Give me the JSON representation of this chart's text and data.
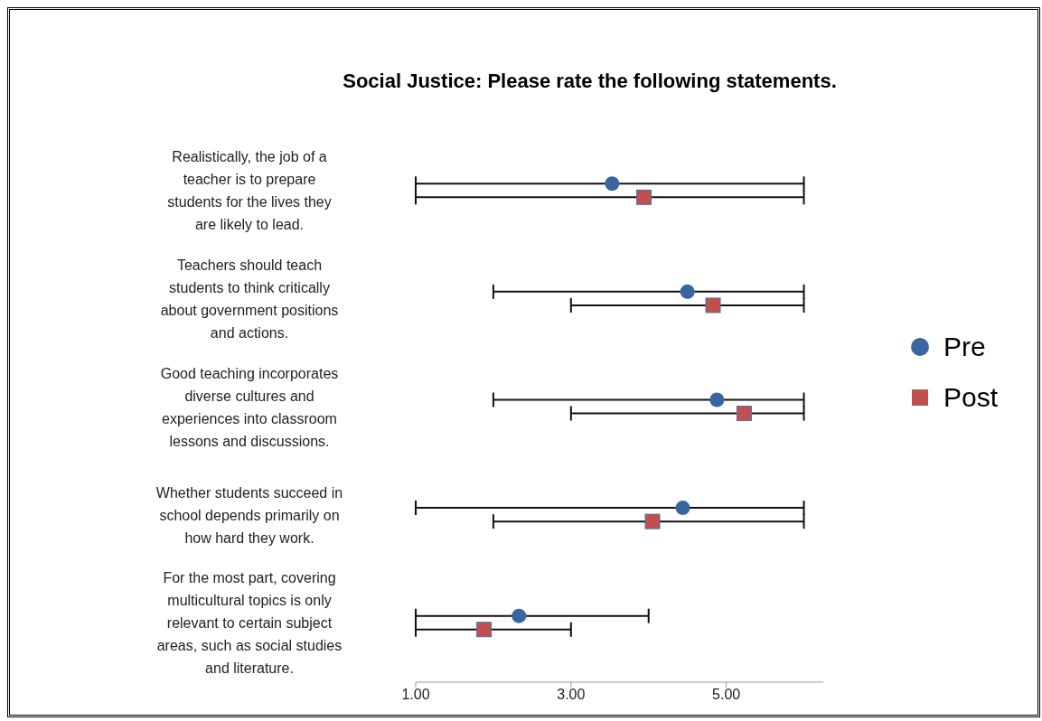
{
  "chart_data": {
    "type": "scatter",
    "orientation": "horizontal",
    "title": "Social Justice: Please rate the following statements.",
    "categories": [
      "Realistically, the job of a teacher is to prepare students for the lives they are likely to lead.",
      "Teachers should teach students to think critically about government positions and actions.",
      "Good teaching incorporates diverse cultures and experiences into classroom lessons and discussions.",
      "Whether students succeed in school depends primarily on how hard they work.",
      "For the most part, covering multicultural topics is only relevant to certain subject areas, such as social studies and literature."
    ],
    "series": [
      {
        "name": "Pre",
        "color": "#3a65a0",
        "marker": "circle",
        "values": [
          3.53,
          4.5,
          4.88,
          4.44,
          2.33
        ],
        "errors": [
          [
            1,
            6
          ],
          [
            2,
            6
          ],
          [
            2,
            6
          ],
          [
            1,
            6
          ],
          [
            1,
            4
          ]
        ]
      },
      {
        "name": "Post",
        "color": "#c0504d",
        "marker": "square",
        "values": [
          3.94,
          4.83,
          5.23,
          4.05,
          1.88
        ],
        "errors": [
          [
            1,
            6
          ],
          [
            3,
            6
          ],
          [
            3,
            6
          ],
          [
            2,
            6
          ],
          [
            1,
            3
          ]
        ]
      }
    ],
    "xlim": [
      1,
      6.25
    ],
    "xticks": [
      {
        "value": 1,
        "label": "1.00"
      },
      {
        "value": 3,
        "label": "3.00"
      },
      {
        "value": 5,
        "label": "5.00"
      }
    ],
    "grid": false,
    "legend": "right"
  }
}
